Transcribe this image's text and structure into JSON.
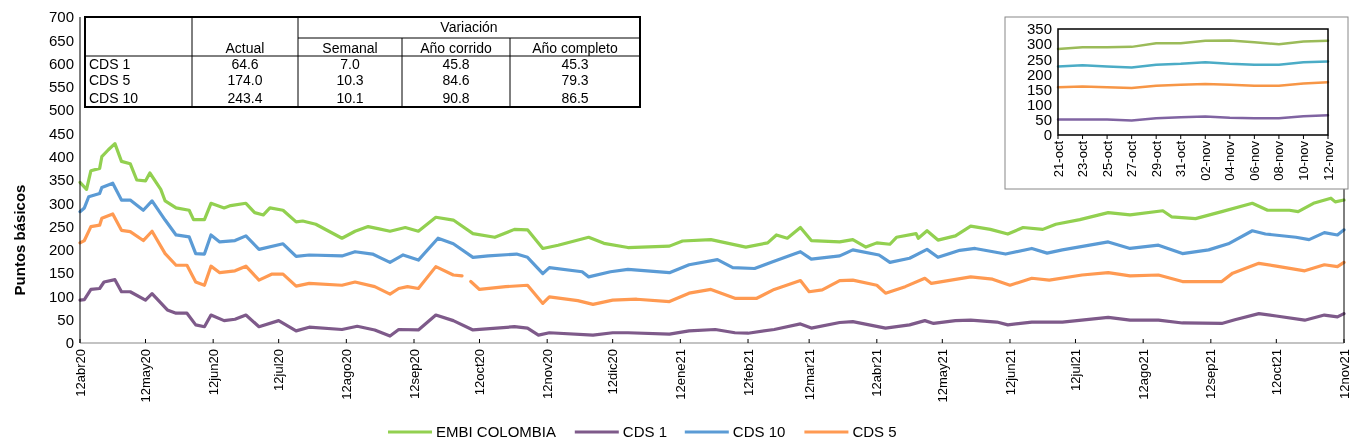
{
  "chart_data": [
    {
      "type": "line",
      "ylabel": "Puntos básicos",
      "legend": "bottom",
      "xlim": [
        "2020-04-12",
        "2021-11-12"
      ],
      "xticks": [
        {
          "value": "2020-04-12",
          "label": "12abr20"
        },
        {
          "value": "2020-05-12",
          "label": "12may20"
        },
        {
          "value": "2020-06-12",
          "label": "12jun20"
        },
        {
          "value": "2020-07-12",
          "label": "12jul20"
        },
        {
          "value": "2020-08-12",
          "label": "12ago20"
        },
        {
          "value": "2020-09-12",
          "label": "12sep20"
        },
        {
          "value": "2020-10-12",
          "label": "12oct20"
        },
        {
          "value": "2020-11-12",
          "label": "12nov20"
        },
        {
          "value": "2020-12-12",
          "label": "12dic20"
        },
        {
          "value": "2021-01-12",
          "label": "12ene21"
        },
        {
          "value": "2021-02-12",
          "label": "12feb21"
        },
        {
          "value": "2021-03-12",
          "label": "12mar21"
        },
        {
          "value": "2021-04-12",
          "label": "12abr21"
        },
        {
          "value": "2021-05-12",
          "label": "12may21"
        },
        {
          "value": "2021-06-12",
          "label": "12jun21"
        },
        {
          "value": "2021-07-12",
          "label": "12jul21"
        },
        {
          "value": "2021-08-12",
          "label": "12ago21"
        },
        {
          "value": "2021-09-12",
          "label": "12sep21"
        },
        {
          "value": "2021-10-12",
          "label": "12oct21"
        },
        {
          "value": "2021-11-12",
          "label": "12nov21"
        }
      ],
      "ylim": [
        0,
        700
      ],
      "yticks": [
        0,
        50,
        100,
        150,
        200,
        250,
        300,
        350,
        400,
        450,
        500,
        550,
        600,
        650,
        700
      ],
      "series": [
        {
          "name": "EMBI COLOMBIA",
          "color": "#92d050",
          "x": [
            "2020-04-12",
            "2020-04-15",
            "2020-04-17",
            "2020-04-21",
            "2020-04-22",
            "2020-04-25",
            "2020-04-28",
            "2020-05-01",
            "2020-05-05",
            "2020-05-08",
            "2020-05-12",
            "2020-05-14",
            "2020-05-19",
            "2020-05-21",
            "2020-05-26",
            "2020-06-01",
            "2020-06-03",
            "2020-06-08",
            "2020-06-11",
            "2020-06-17",
            "2020-06-20",
            "2020-06-27",
            "2020-07-01",
            "2020-07-05",
            "2020-07-08",
            "2020-07-14",
            "2020-07-20",
            "2020-07-23",
            "2020-07-29",
            "2020-08-04",
            "2020-08-10",
            "2020-08-16",
            "2020-08-22",
            "2020-08-27",
            "2020-09-01",
            "2020-09-08",
            "2020-09-14",
            "2020-09-22",
            "2020-09-30",
            "2020-10-09",
            "2020-10-19",
            "2020-10-28",
            "2020-11-03",
            "2020-11-10",
            "2020-11-17",
            "2020-12-01",
            "2020-12-08",
            "2020-12-19",
            "2021-01-07",
            "2021-01-13",
            "2021-01-26",
            "2021-02-11",
            "2021-02-21",
            "2021-02-25",
            "2021-03-02",
            "2021-03-08",
            "2021-03-13",
            "2021-03-26",
            "2021-04-01",
            "2021-04-07",
            "2021-04-12",
            "2021-04-18",
            "2021-04-21",
            "2021-04-30",
            "2021-05-01",
            "2021-05-05",
            "2021-05-10",
            "2021-05-18",
            "2021-05-25",
            "2021-06-03",
            "2021-06-11",
            "2021-06-18",
            "2021-06-27",
            "2021-07-03",
            "2021-07-14",
            "2021-07-27",
            "2021-08-06",
            "2021-08-21",
            "2021-08-25",
            "2021-09-05",
            "2021-09-17",
            "2021-10-01",
            "2021-10-08",
            "2021-10-18",
            "2021-10-22",
            "2021-10-29",
            "2021-11-06",
            "2021-11-08",
            "2021-11-12"
          ],
          "values": [
            345,
            330,
            370,
            375,
            400,
            415,
            428,
            390,
            385,
            350,
            348,
            365,
            330,
            305,
            290,
            285,
            265,
            265,
            300,
            290,
            295,
            300,
            280,
            275,
            290,
            285,
            260,
            262,
            255,
            240,
            225,
            240,
            250,
            245,
            240,
            248,
            240,
            270,
            264,
            235,
            227,
            244,
            243,
            203,
            210,
            227,
            214,
            205,
            208,
            219,
            222,
            206,
            215,
            232,
            225,
            248,
            220,
            217,
            222,
            206,
            215,
            212,
            227,
            235,
            225,
            241,
            221,
            230,
            251,
            244,
            234,
            248,
            244,
            255,
            265,
            280,
            275,
            284,
            271,
            267,
            282,
            300,
            285,
            285,
            282,
            300,
            311,
            303,
            307
          ]
        },
        {
          "name": "CDS 1",
          "color": "#7e5a8a",
          "x": [
            "2020-04-12",
            "2020-04-14",
            "2020-04-17",
            "2020-04-21",
            "2020-04-23",
            "2020-04-28",
            "2020-05-01",
            "2020-05-05",
            "2020-05-12",
            "2020-05-15",
            "2020-05-22",
            "2020-05-26",
            "2020-05-31",
            "2020-06-04",
            "2020-06-08",
            "2020-06-11",
            "2020-06-17",
            "2020-06-22",
            "2020-06-27",
            "2020-07-03",
            "2020-07-12",
            "2020-07-20",
            "2020-07-26",
            "2020-08-10",
            "2020-08-17",
            "2020-08-25",
            "2020-09-01",
            "2020-09-05",
            "2020-09-14",
            "2020-09-22",
            "2020-09-30",
            "2020-10-09",
            "2020-10-28",
            "2020-11-03",
            "2020-11-08",
            "2020-11-13",
            "2020-12-03",
            "2020-12-12",
            "2020-12-19",
            "2021-01-07",
            "2021-01-16",
            "2021-01-28",
            "2021-02-06",
            "2021-02-12",
            "2021-02-24",
            "2021-03-08",
            "2021-03-13",
            "2021-03-26",
            "2021-04-01",
            "2021-04-16",
            "2021-04-27",
            "2021-05-04",
            "2021-05-08",
            "2021-05-18",
            "2021-05-25",
            "2021-06-06",
            "2021-06-11",
            "2021-06-22",
            "2021-07-06",
            "2021-07-27",
            "2021-08-06",
            "2021-08-19",
            "2021-08-30",
            "2021-09-17",
            "2021-09-23",
            "2021-10-04",
            "2021-10-12",
            "2021-10-25",
            "2021-11-03",
            "2021-11-09",
            "2021-11-12"
          ],
          "values": [
            92,
            93,
            115,
            117,
            131,
            136,
            110,
            110,
            92,
            106,
            71,
            64,
            64,
            39,
            35,
            60,
            48,
            51,
            60,
            35,
            48,
            26,
            34,
            29,
            36,
            28,
            15,
            29,
            28,
            60,
            48,
            28,
            35,
            32,
            17,
            22,
            17,
            22,
            22,
            19,
            26,
            29,
            22,
            21,
            29,
            41,
            32,
            44,
            46,
            32,
            39,
            48,
            42,
            48,
            49,
            45,
            39,
            45,
            45,
            55,
            49,
            49,
            43,
            42,
            50,
            63,
            58,
            49,
            60,
            56,
            63
          ]
        },
        {
          "name": "CDS 10",
          "color": "#5b9bd5",
          "x": [
            "2020-04-12",
            "2020-04-14",
            "2020-04-16",
            "2020-04-21",
            "2020-04-22",
            "2020-04-27",
            "2020-05-01",
            "2020-05-05",
            "2020-05-11",
            "2020-05-15",
            "2020-05-21",
            "2020-05-26",
            "2020-06-01",
            "2020-06-04",
            "2020-06-08",
            "2020-06-11",
            "2020-06-15",
            "2020-06-22",
            "2020-06-27",
            "2020-07-03",
            "2020-07-14",
            "2020-07-20",
            "2020-07-26",
            "2020-08-10",
            "2020-08-16",
            "2020-08-24",
            "2020-09-01",
            "2020-09-07",
            "2020-09-14",
            "2020-09-23",
            "2020-09-30",
            "2020-10-09",
            "2020-10-16",
            "2020-10-29",
            "2020-11-03",
            "2020-11-10",
            "2020-11-13",
            "2020-11-28",
            "2020-12-01",
            "2020-12-11",
            "2020-12-19",
            "2021-01-07",
            "2021-01-16",
            "2021-01-29",
            "2021-02-05",
            "2021-02-15",
            "2021-02-23",
            "2021-03-08",
            "2021-03-13",
            "2021-03-26",
            "2021-04-01",
            "2021-04-13",
            "2021-04-18",
            "2021-04-27",
            "2021-05-05",
            "2021-05-10",
            "2021-05-20",
            "2021-05-27",
            "2021-06-10",
            "2021-06-22",
            "2021-06-29",
            "2021-07-06",
            "2021-07-27",
            "2021-08-06",
            "2021-08-19",
            "2021-08-30",
            "2021-09-11",
            "2021-09-20",
            "2021-10-01",
            "2021-10-07",
            "2021-10-21",
            "2021-10-27",
            "2021-11-03",
            "2021-11-09",
            "2021-11-12"
          ],
          "values": [
            282,
            290,
            314,
            321,
            334,
            343,
            307,
            307,
            285,
            305,
            264,
            232,
            228,
            192,
            191,
            232,
            217,
            220,
            230,
            201,
            213,
            186,
            189,
            187,
            196,
            191,
            173,
            189,
            178,
            225,
            213,
            184,
            187,
            191,
            184,
            149,
            162,
            153,
            142,
            153,
            158,
            151,
            168,
            179,
            162,
            160,
            174,
            196,
            180,
            187,
            200,
            189,
            173,
            182,
            201,
            184,
            199,
            203,
            191,
            203,
            193,
            200,
            217,
            203,
            210,
            192,
            200,
            213,
            241,
            234,
            227,
            222,
            237,
            232,
            243
          ]
        },
        {
          "name": "CDS 5",
          "color": "#ff9a52",
          "x": [
            "2020-04-12",
            "2020-04-14",
            "2020-04-17",
            "2020-04-21",
            "2020-04-22",
            "2020-04-27",
            "2020-05-01",
            "2020-05-05",
            "2020-05-11",
            "2020-05-15",
            "2020-05-21",
            "2020-05-26",
            "2020-05-31",
            "2020-06-04",
            "2020-06-08",
            "2020-06-11",
            "2020-06-15",
            "2020-06-22",
            "2020-06-27",
            "2020-07-03",
            "2020-07-09",
            "2020-07-14",
            "2020-07-20",
            "2020-07-26",
            "2020-08-10",
            "2020-08-16",
            "2020-08-25",
            "2020-09-01",
            "2020-09-05",
            "2020-09-09",
            "2020-09-14",
            "2020-09-22",
            "2020-09-30",
            "2020-10-04",
            "2020-10-06",
            "2020-10-08",
            "2020-10-12",
            "2020-10-24",
            "2020-11-03",
            "2020-11-10",
            "2020-11-13",
            "2020-11-26",
            "2020-12-03",
            "2020-12-12",
            "2020-12-23",
            "2021-01-07",
            "2021-01-16",
            "2021-01-26",
            "2021-02-06",
            "2021-02-16",
            "2021-02-24",
            "2021-03-08",
            "2021-03-12",
            "2021-03-18",
            "2021-03-26",
            "2021-04-01",
            "2021-04-12",
            "2021-04-16",
            "2021-04-25",
            "2021-05-04",
            "2021-05-07",
            "2021-05-16",
            "2021-05-25",
            "2021-06-04",
            "2021-06-12",
            "2021-06-22",
            "2021-06-30",
            "2021-07-15",
            "2021-07-27",
            "2021-08-06",
            "2021-08-19",
            "2021-08-30",
            "2021-09-17",
            "2021-09-22",
            "2021-10-04",
            "2021-10-12",
            "2021-10-25",
            "2021-11-03",
            "2021-11-09",
            "2021-11-12"
          ],
          "values": [
            215,
            220,
            250,
            253,
            268,
            277,
            242,
            239,
            220,
            240,
            192,
            167,
            167,
            131,
            124,
            165,
            151,
            155,
            165,
            135,
            148,
            148,
            122,
            128,
            124,
            131,
            121,
            105,
            117,
            121,
            117,
            164,
            146,
            144,
            null,
            132,
            115,
            121,
            124,
            85,
            99,
            91,
            83,
            92,
            94,
            89,
            107,
            115,
            96,
            96,
            115,
            134,
            110,
            114,
            134,
            135,
            124,
            107,
            121,
            139,
            128,
            135,
            142,
            137,
            124,
            139,
            135,
            146,
            151,
            144,
            146,
            132,
            132,
            150,
            171,
            165,
            155,
            168,
            164,
            173
          ]
        }
      ]
    },
    {
      "type": "other",
      "annotations": [
        "Variación",
        "Actual",
        "Semanal",
        "Año corrido",
        "Año completo",
        "CDS 1",
        "64.6",
        "7.0",
        "45.8",
        "45.3",
        "CDS 5",
        "174.0",
        "10.3",
        "84.6",
        "79.3",
        "CDS 10",
        "243.4",
        "10.1",
        "90.8",
        "86.5"
      ]
    },
    {
      "type": "line",
      "xlim": [
        "--10-21",
        "--11-12"
      ],
      "xticks": [
        {
          "value": "--10-21",
          "label": "21-oct"
        },
        {
          "value": "--10-23",
          "label": "23-oct"
        },
        {
          "value": "--10-25",
          "label": "25-oct"
        },
        {
          "value": "--10-27",
          "label": "27-oct"
        },
        {
          "value": "--10-29",
          "label": "29-oct"
        },
        {
          "value": "--10-31",
          "label": "31-oct"
        },
        {
          "value": "--11-02",
          "label": "02-nov"
        },
        {
          "value": "--11-04",
          "label": "04-nov"
        },
        {
          "value": "--11-06",
          "label": "06-nov"
        },
        {
          "value": "--11-08",
          "label": "08-nov"
        },
        {
          "value": "--11-10",
          "label": "10-nov"
        },
        {
          "value": "--11-12",
          "label": "12-nov"
        }
      ],
      "ylim": [
        0,
        350
      ],
      "yticks": [
        0,
        50,
        100,
        150,
        200,
        250,
        300,
        350
      ],
      "x": [
        "--10-21",
        "--10-23",
        "--10-25",
        "--10-27",
        "--10-29",
        "--10-31",
        "--11-02",
        "--11-04",
        "--11-06",
        "--11-08",
        "--11-10",
        "--11-12"
      ],
      "series": [
        {
          "color": "#9bbb59",
          "values": [
            284,
            290,
            290,
            291,
            303,
            303,
            311,
            312,
            306,
            300,
            309,
            311
          ]
        },
        {
          "color": "#4bacc6",
          "values": [
            226,
            230,
            226,
            223,
            232,
            235,
            240,
            235,
            232,
            232,
            240,
            243
          ]
        },
        {
          "color": "#f79646",
          "values": [
            158,
            160,
            158,
            155,
            163,
            166,
            168,
            166,
            163,
            163,
            170,
            174
          ]
        },
        {
          "color": "#8064a2",
          "values": [
            51,
            51,
            51,
            48,
            55,
            59,
            61,
            57,
            55,
            55,
            62,
            65
          ]
        }
      ]
    }
  ]
}
